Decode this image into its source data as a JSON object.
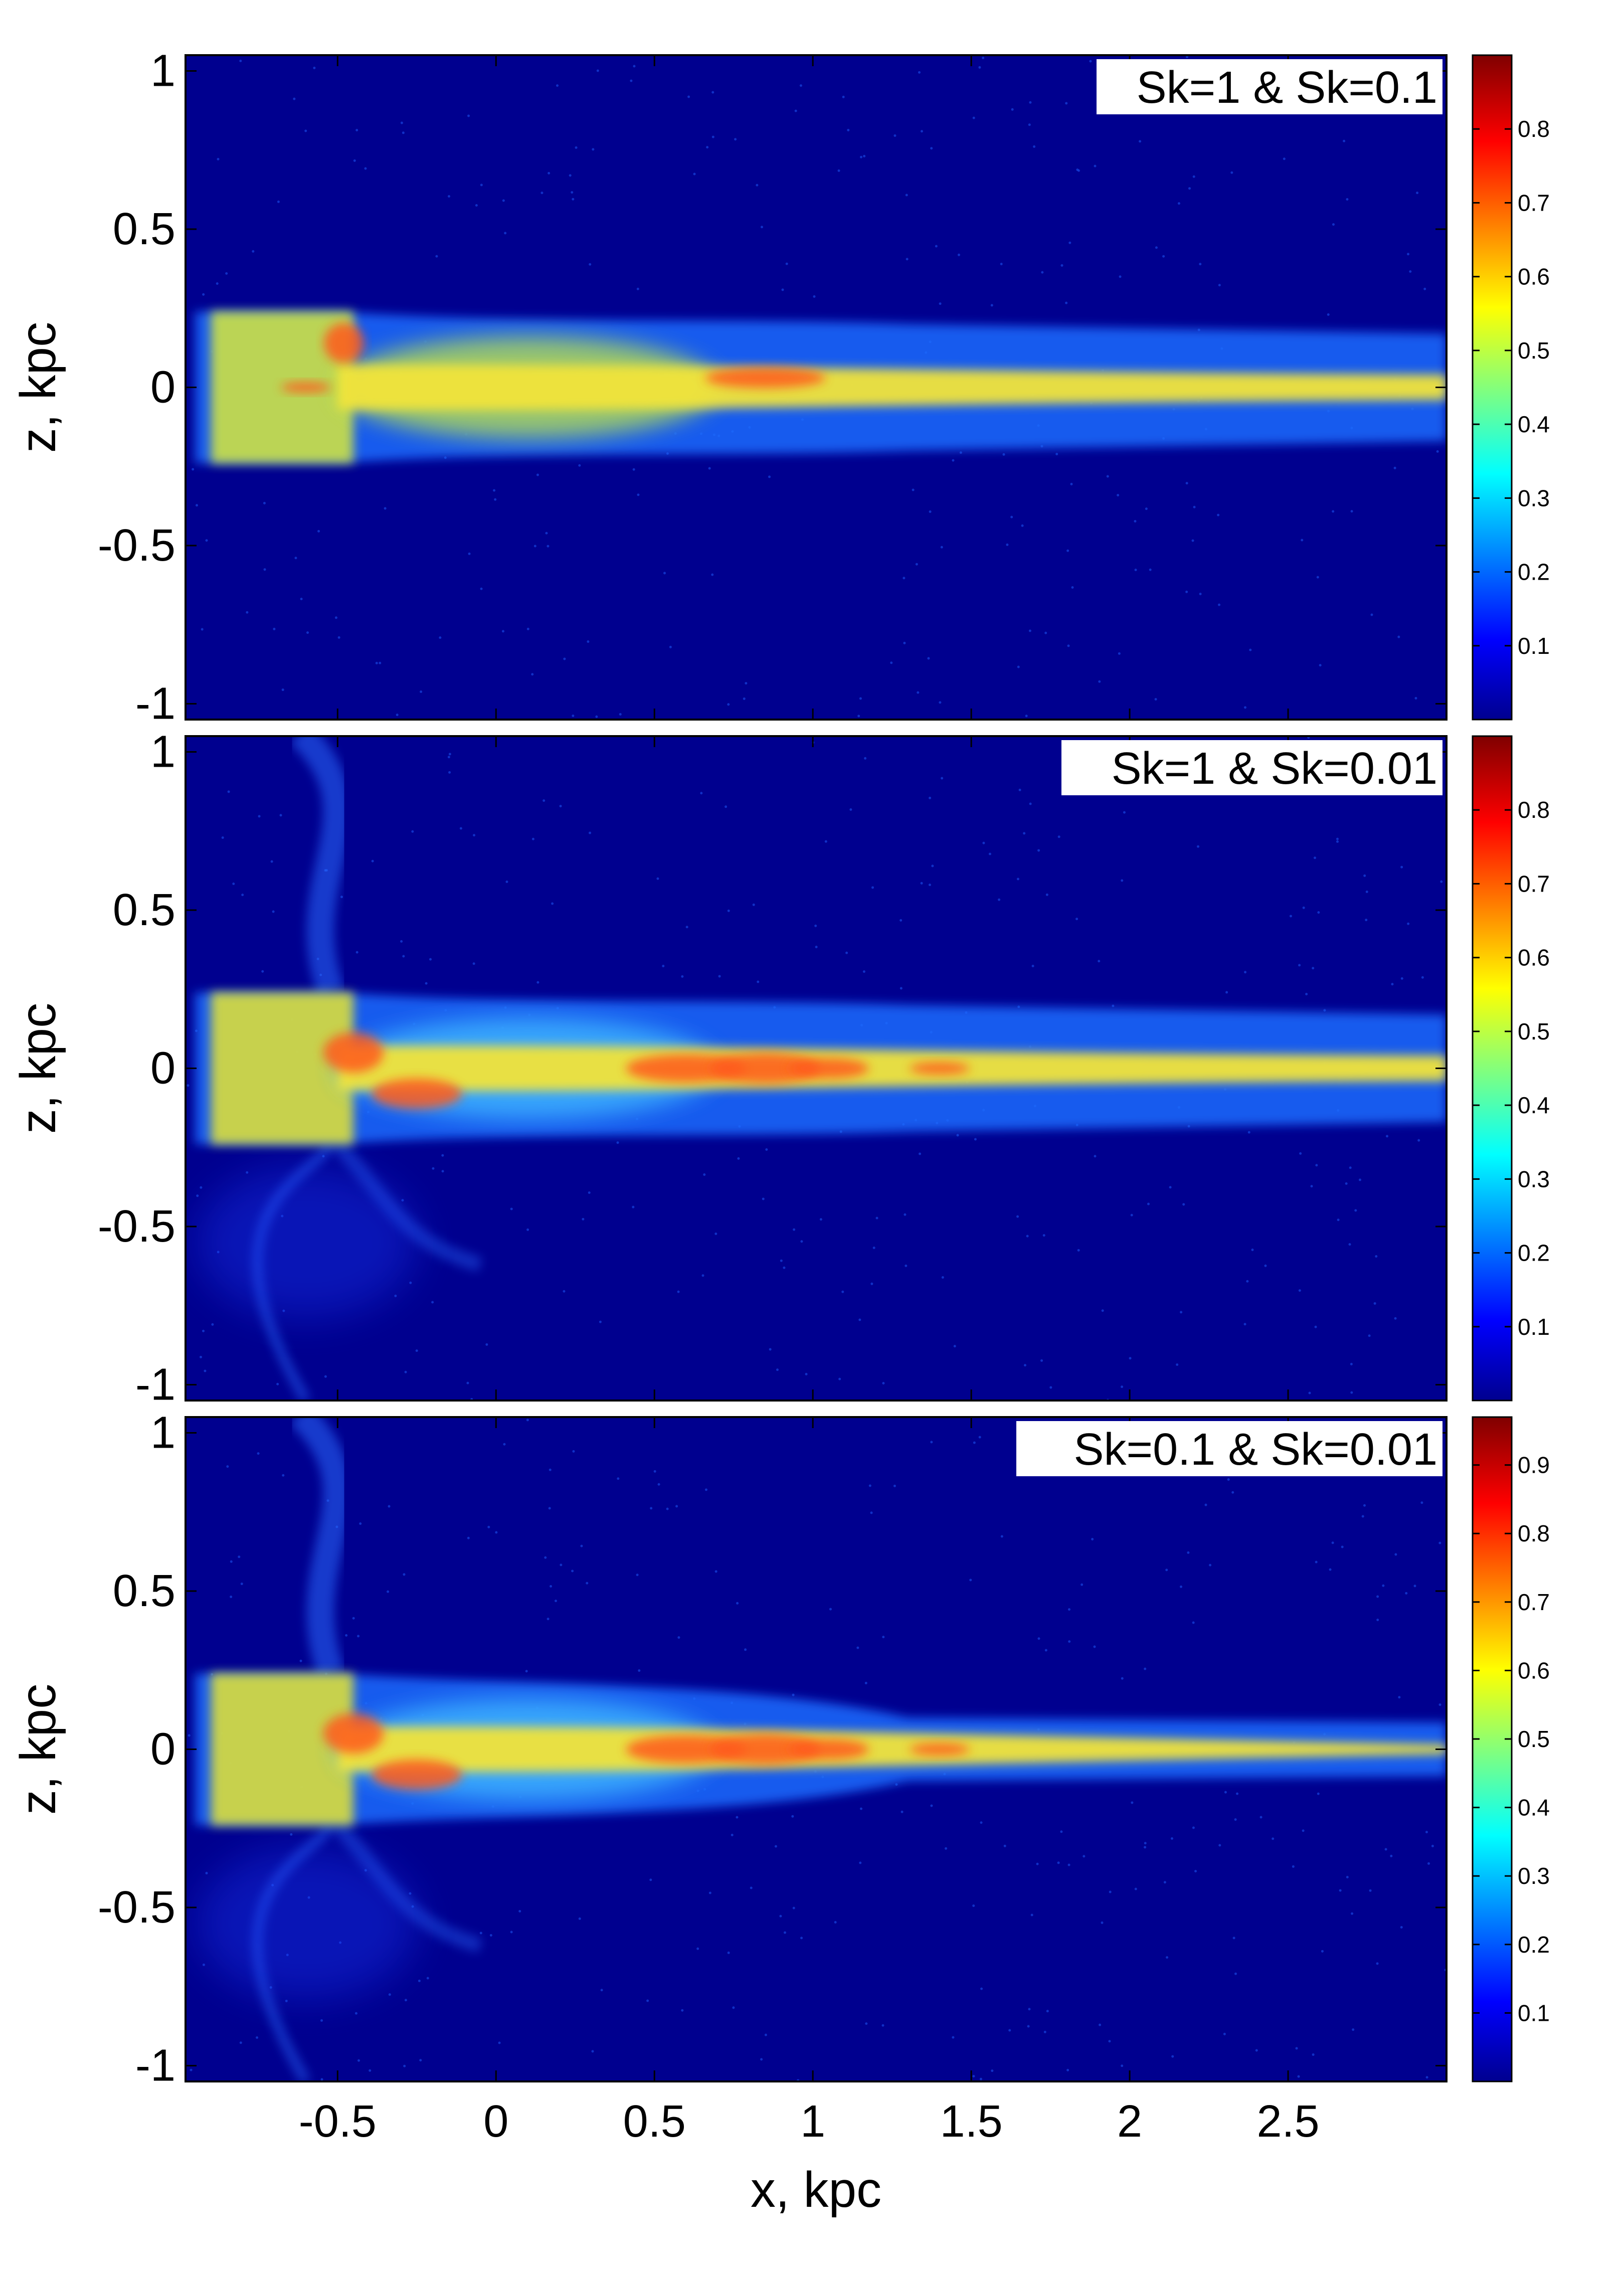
{
  "chart_data": [
    {
      "type": "heatmap",
      "label": "Sk=1 & Sk=0.1",
      "ylabel": "z, kpc",
      "xlim": [
        -0.98,
        3.0
      ],
      "ylim": [
        -1.05,
        1.05
      ],
      "yticks": [
        "1",
        "0.5",
        "0",
        "-0.5",
        "-1"
      ],
      "ytick_values": [
        1,
        0.5,
        0,
        -0.5,
        -1
      ],
      "colorbar": {
        "ticks": [
          "0.8",
          "0.7",
          "0.6",
          "0.5",
          "0.4",
          "0.3",
          "0.2",
          "0.1"
        ],
        "tick_values": [
          0.8,
          0.7,
          0.6,
          0.5,
          0.4,
          0.3,
          0.2,
          0.1
        ],
        "range": [
          0.0,
          0.9
        ]
      }
    },
    {
      "type": "heatmap",
      "label": "Sk=1 & Sk=0.01",
      "ylabel": "z, kpc",
      "xlim": [
        -0.98,
        3.0
      ],
      "ylim": [
        -1.05,
        1.05
      ],
      "yticks": [
        "1",
        "0.5",
        "0",
        "-0.5",
        "-1"
      ],
      "ytick_values": [
        1,
        0.5,
        0,
        -0.5,
        -1
      ],
      "colorbar": {
        "ticks": [
          "0.8",
          "0.7",
          "0.6",
          "0.5",
          "0.4",
          "0.3",
          "0.2",
          "0.1"
        ],
        "tick_values": [
          0.8,
          0.7,
          0.6,
          0.5,
          0.4,
          0.3,
          0.2,
          0.1
        ],
        "range": [
          0.0,
          0.9
        ]
      }
    },
    {
      "type": "heatmap",
      "label": "Sk=0.1 & Sk=0.01",
      "ylabel": "z, kpc",
      "xlabel": "x, kpc",
      "xlim": [
        -0.98,
        3.0
      ],
      "ylim": [
        -1.05,
        1.05
      ],
      "yticks": [
        "1",
        "0.5",
        "0",
        "-0.5",
        "-1"
      ],
      "ytick_values": [
        1,
        0.5,
        0,
        -0.5,
        -1
      ],
      "xticks": [
        "-0.5",
        "0",
        "0.5",
        "1",
        "1.5",
        "2",
        "2.5"
      ],
      "xtick_values": [
        -0.5,
        0,
        0.5,
        1,
        1.5,
        2,
        2.5
      ],
      "colorbar": {
        "ticks": [
          "0.9",
          "0.8",
          "0.7",
          "0.6",
          "0.5",
          "0.4",
          "0.3",
          "0.2",
          "0.1"
        ],
        "tick_values": [
          0.9,
          0.8,
          0.7,
          0.6,
          0.5,
          0.4,
          0.3,
          0.2,
          0.1
        ],
        "range": [
          0.0,
          0.97
        ]
      }
    }
  ],
  "colors": {
    "background": "#00008f",
    "colormap": "jet"
  }
}
